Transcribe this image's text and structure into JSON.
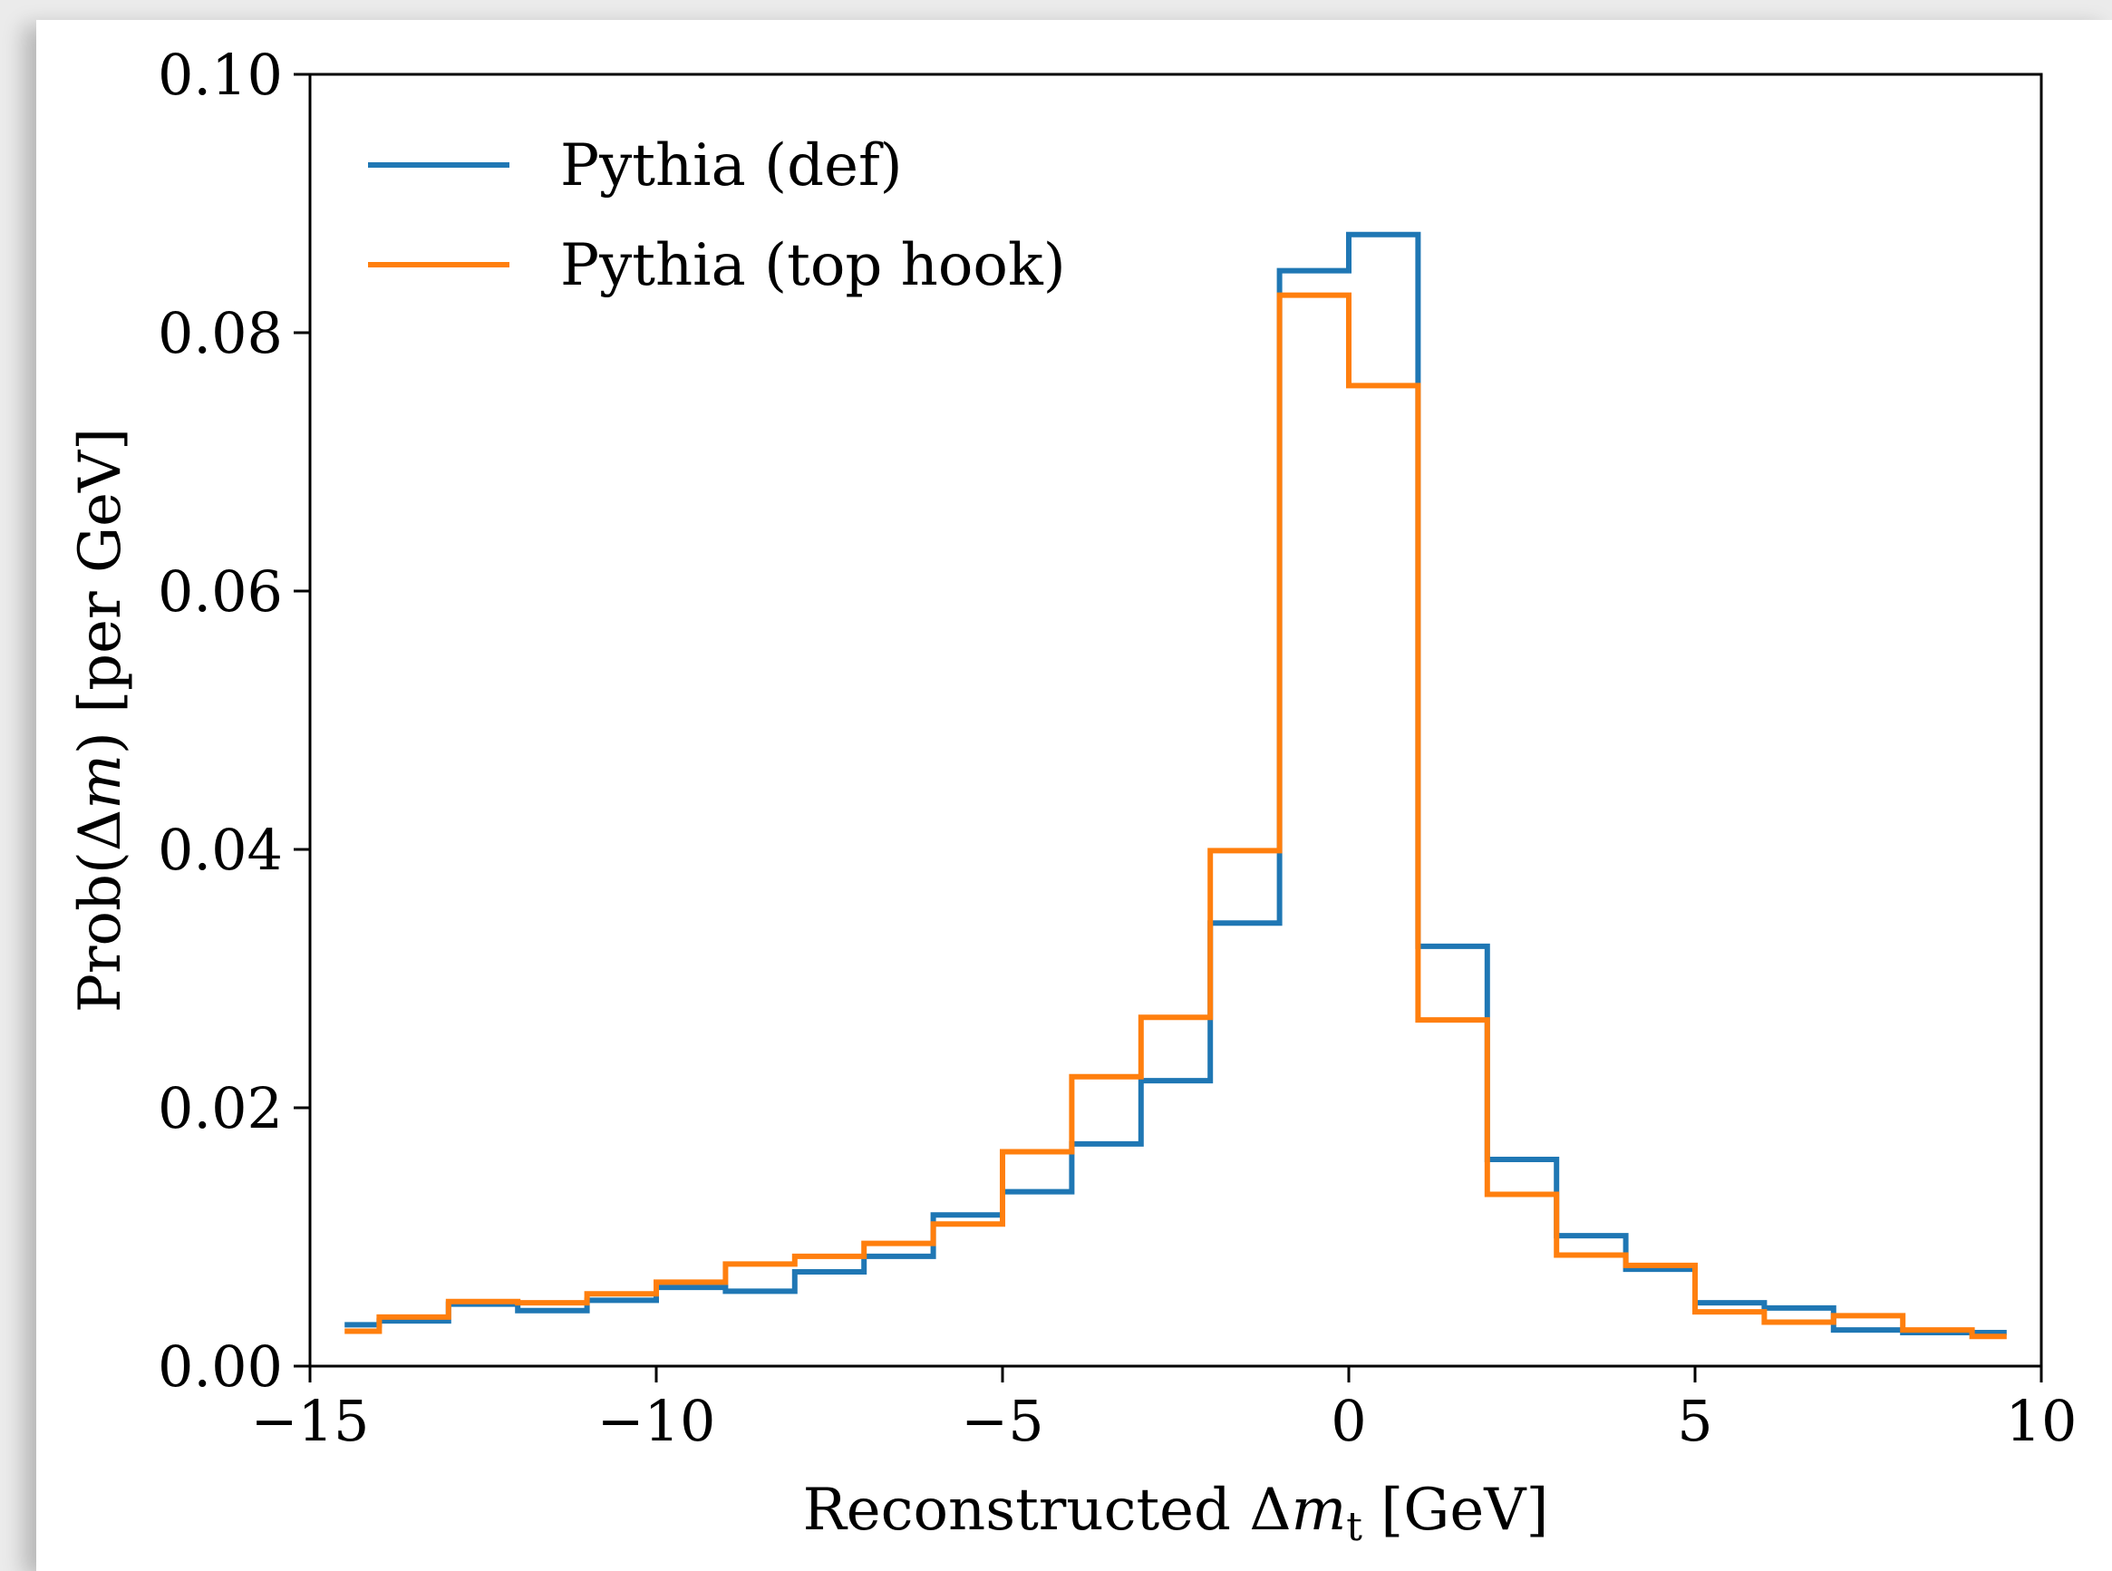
{
  "chart_data": {
    "type": "histogram-step",
    "title": "",
    "xlabel": "Reconstructed Δm_t [GeV]",
    "xlabel_parts": {
      "prefix": "Reconstructed Δ",
      "var": "m",
      "sub": "t",
      "suffix": " [GeV]"
    },
    "ylabel": "Prob(Δm) [per GeV]",
    "ylabel_parts": {
      "prefix": "Prob(Δ",
      "var": "m",
      "suffix": ") [per GeV]"
    },
    "xlim": [
      -15,
      10
    ],
    "ylim": [
      0,
      0.1
    ],
    "xticks": [
      -15,
      -10,
      -5,
      0,
      5,
      10
    ],
    "xtick_labels": [
      "−15",
      "−10",
      "−5",
      "0",
      "5",
      "10"
    ],
    "yticks": [
      0,
      0.02,
      0.04,
      0.06,
      0.08,
      0.1
    ],
    "ytick_labels": [
      "0.00",
      "0.02",
      "0.04",
      "0.06",
      "0.08",
      "0.10"
    ],
    "grid": false,
    "legend_position": "top-left",
    "bin_edges": [
      -14.5,
      -14,
      -13,
      -12,
      -11,
      -10,
      -9,
      -8,
      -7,
      -6,
      -5,
      -4,
      -3,
      -2,
      -1,
      0,
      1,
      2,
      3,
      4,
      5,
      6,
      7,
      8,
      9,
      9.5
    ],
    "series": [
      {
        "name": "Pythia (def)",
        "color": "#1f77b4",
        "values": [
          0.0032,
          0.0035,
          0.0048,
          0.0043,
          0.0051,
          0.0061,
          0.0058,
          0.0073,
          0.0085,
          0.0117,
          0.0135,
          0.0172,
          0.0221,
          0.0343,
          0.0848,
          0.0876,
          0.0325,
          0.016,
          0.0101,
          0.0075,
          0.0049,
          0.0045,
          0.0028,
          0.0026,
          0.0026
        ]
      },
      {
        "name": "Pythia (top hook)",
        "color": "#ff7f0e",
        "values": [
          0.0027,
          0.0038,
          0.005,
          0.0049,
          0.0056,
          0.0065,
          0.0079,
          0.0085,
          0.0095,
          0.011,
          0.0166,
          0.0224,
          0.027,
          0.0399,
          0.0829,
          0.0759,
          0.0268,
          0.0133,
          0.0086,
          0.0078,
          0.0042,
          0.0034,
          0.0039,
          0.0028,
          0.0023
        ]
      }
    ]
  }
}
